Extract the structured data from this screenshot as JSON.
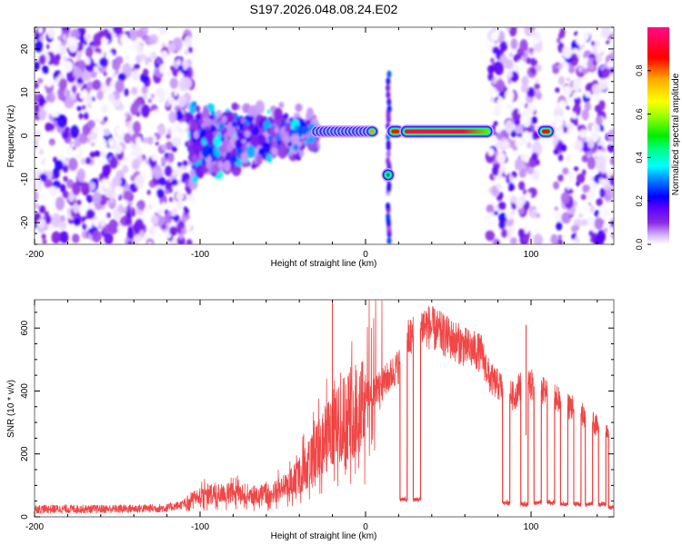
{
  "figure": {
    "title": "S197.2026.048.08.24.E02"
  },
  "chart_data": [
    {
      "type": "heatmap",
      "name": "spectrogram",
      "xlabel": "Height of straight line (km)",
      "ylabel": "Frequency (Hz)",
      "xlim": [
        -200,
        150
      ],
      "ylim": [
        -25,
        25
      ],
      "xticks": [
        -200,
        -100,
        0,
        100
      ],
      "yticks": [
        -20,
        -10,
        0,
        10,
        20
      ],
      "colorbar": {
        "label": "Normalized spectral amplitude",
        "range": [
          0.0,
          1.0
        ],
        "ticks": [
          "0.0",
          "0.2",
          "0.4",
          "0.6",
          "0.8"
        ],
        "colormap": [
          "#ffffff",
          "#d9b8ff",
          "#8a2be2",
          "#5a00ff",
          "#0000ff",
          "#00aaff",
          "#00ffff",
          "#00ff80",
          "#00ff00",
          "#aaff00",
          "#ffff00",
          "#ffaa00",
          "#ff0000",
          "#ff0080"
        ]
      },
      "features": [
        {
          "label": "noise region (scattered)",
          "x": [
            -200,
            -105
          ],
          "freq": [
            -25,
            25
          ],
          "density": 0.55,
          "amp": [
            0.0,
            0.2
          ]
        },
        {
          "label": "broad cluster",
          "x": [
            -105,
            -30
          ],
          "freq": [
            -12,
            8
          ],
          "density": 0.75,
          "amp": [
            0.05,
            0.35
          ]
        },
        {
          "label": "beaded signal line",
          "x": [
            -30,
            5
          ],
          "freq": [
            0,
            2
          ],
          "amp": [
            0.3,
            0.9
          ]
        },
        {
          "label": "vertical streak",
          "x": [
            13,
            15
          ],
          "freq": [
            -25,
            15
          ],
          "amp": [
            0.05,
            0.3
          ]
        },
        {
          "label": "sideband blob",
          "x": [
            12,
            14
          ],
          "freq": [
            -10,
            -8
          ],
          "amp": [
            0.3
          ]
        },
        {
          "label": "short strong segment",
          "x": [
            15,
            21
          ],
          "freq": [
            0,
            2
          ],
          "amp": [
            0.85
          ]
        },
        {
          "label": "long strong segment",
          "x": [
            23,
            75
          ],
          "freq": [
            0,
            2
          ],
          "amp": [
            0.95,
            0.55
          ]
        },
        {
          "label": "noise region (scattered)",
          "x": [
            75,
            105
          ],
          "freq": [
            -25,
            25
          ],
          "density": 0.6,
          "amp": [
            0.0,
            0.2
          ]
        },
        {
          "label": "isolated strong blob",
          "x": [
            106,
            112
          ],
          "freq": [
            0,
            2
          ],
          "amp": [
            0.9
          ]
        },
        {
          "label": "noise region (scattered)",
          "x": [
            114,
            150
          ],
          "freq": [
            -25,
            25
          ],
          "density": 0.55,
          "amp": [
            0.0,
            0.2
          ]
        }
      ]
    },
    {
      "type": "line",
      "name": "snr",
      "xlabel": "Height of straight line (km)",
      "ylabel": "SNR (10 * v/v)",
      "xlim": [
        -200,
        150
      ],
      "ylim": [
        0,
        690
      ],
      "xticks": [
        -200,
        -100,
        0,
        100
      ],
      "yticks": [
        0,
        200,
        400,
        600
      ],
      "color": "#ee3333",
      "series": [
        {
          "name": "SNR envelope (mean)",
          "x": [
            -200,
            -150,
            -120,
            -110,
            -100,
            -80,
            -60,
            -50,
            -40,
            -30,
            -20,
            -10,
            0,
            10,
            20,
            25,
            30,
            35,
            40,
            50,
            60,
            70,
            75,
            80,
            85,
            90,
            95,
            100,
            110,
            120,
            130,
            140,
            150
          ],
          "y": [
            25,
            25,
            28,
            40,
            70,
            75,
            70,
            90,
            130,
            200,
            280,
            330,
            380,
            420,
            480,
            560,
            580,
            610,
            600,
            570,
            540,
            520,
            440,
            420,
            400,
            380,
            440,
            420,
            390,
            360,
            330,
            290,
            250
          ]
        }
      ],
      "spikes": [
        {
          "x": -20,
          "y": 690
        },
        {
          "x": 97,
          "y": 610
        }
      ],
      "dropouts": [
        {
          "x": 23,
          "y": 55
        },
        {
          "x": 31,
          "y": 55
        },
        {
          "x": 85,
          "y": 45
        },
        {
          "x": 96,
          "y": 40
        },
        {
          "x": 104,
          "y": 45
        },
        {
          "x": 112,
          "y": 45
        },
        {
          "x": 120,
          "y": 40
        },
        {
          "x": 128,
          "y": 40
        },
        {
          "x": 135,
          "y": 40
        },
        {
          "x": 143,
          "y": 40
        },
        {
          "x": 149,
          "y": 30
        }
      ]
    }
  ]
}
